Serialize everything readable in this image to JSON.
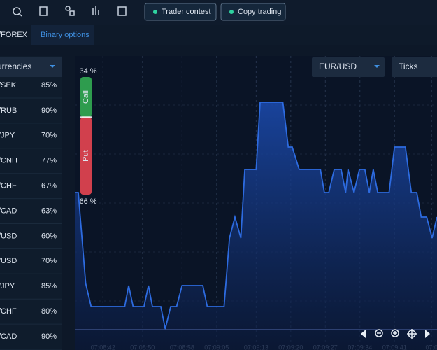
{
  "toolbar": {
    "buttons": [
      "Trader contest",
      "Copy trading"
    ]
  },
  "tabs": [
    "/FOREX",
    "Binary options"
  ],
  "sidebar": {
    "dropdown": "urrencies",
    "assets": [
      {
        "name": "/SEK",
        "payout": "85%"
      },
      {
        "name": "/RUB",
        "payout": "90%"
      },
      {
        "name": "/JPY",
        "payout": "70%"
      },
      {
        "name": "/CNH",
        "payout": "77%"
      },
      {
        "name": "/CHF",
        "payout": "67%"
      },
      {
        "name": "/CAD",
        "payout": "63%"
      },
      {
        "name": "/USD",
        "payout": "60%"
      },
      {
        "name": "/USD",
        "payout": "70%"
      },
      {
        "name": "/JPY",
        "payout": "85%"
      },
      {
        "name": "/CHF",
        "payout": "80%"
      },
      {
        "name": "/CAD",
        "payout": "90%"
      }
    ]
  },
  "controls": {
    "asset": "EUR/USD",
    "chart_mode": "Ticks"
  },
  "sentiment": {
    "call_label": "Call",
    "put_label": "Put",
    "call": 34,
    "put": 66,
    "call_text": "34 %",
    "put_text": "66 %"
  },
  "chart_data": {
    "type": "area",
    "color": "#2d6be0",
    "x": [
      36.3,
      37.0,
      38.5,
      39.6,
      46.4,
      47.2,
      48.1,
      50.3,
      51.2,
      52.0,
      53.7,
      54.6,
      55.7,
      56.9,
      58.0,
      62.2,
      63.1,
      66.5,
      67.6,
      68.7,
      69.9,
      70.7,
      73.0,
      73.8,
      78.4,
      79.5,
      80.3,
      81.7,
      86.0,
      86.8,
      87.7,
      88.8,
      90.2,
      91.1,
      91.6,
      92.8,
      93.9,
      95.0,
      95.9,
      96.7,
      97.6,
      99.9,
      101.0,
      103.2,
      104.4,
      105.5,
      106.4,
      107.5,
      108.6,
      109.6
    ],
    "values": [
      205,
      205,
      75,
      42,
      42,
      72,
      42,
      42,
      72,
      42,
      42,
      10,
      42,
      42,
      72,
      72,
      42,
      42,
      140,
      170,
      140,
      238,
      238,
      334,
      334,
      270,
      270,
      238,
      238,
      205,
      205,
      238,
      238,
      205,
      238,
      205,
      238,
      238,
      205,
      238,
      205,
      205,
      270,
      270,
      205,
      205,
      170,
      170,
      140,
      170
    ],
    "xlim": [
      36.3,
      109.6
    ],
    "ylim": [
      0,
      400
    ],
    "xticks": [
      {
        "value": 42,
        "label": "07:08:42"
      },
      {
        "value": 50,
        "label": "07:08:50"
      },
      {
        "value": 58,
        "label": "07:08:58"
      },
      {
        "value": 65,
        "label": "07:09:05"
      },
      {
        "value": 73,
        "label": "07:09:13"
      },
      {
        "value": 80,
        "label": "07:09:20"
      },
      {
        "value": 87,
        "label": "07:09:27"
      },
      {
        "value": 94,
        "label": "07:09:34"
      },
      {
        "value": 101,
        "label": "07:09:41"
      },
      {
        "value": 108.5,
        "label": "07:0"
      }
    ],
    "grid": true
  }
}
